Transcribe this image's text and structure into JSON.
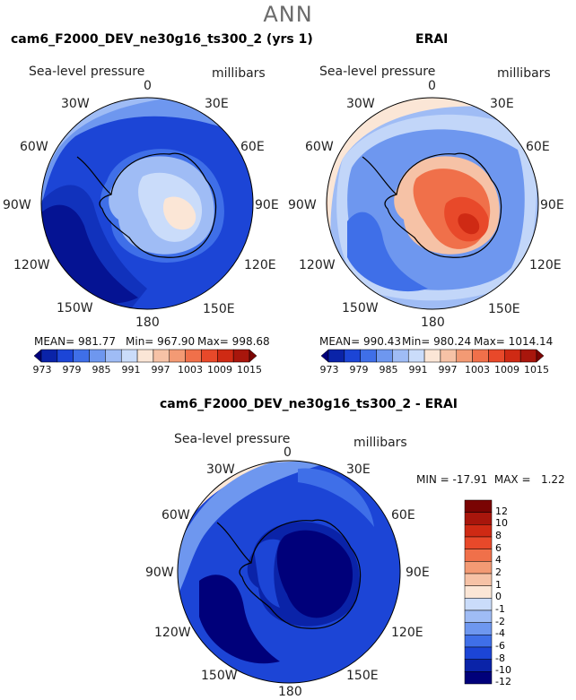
{
  "page": {
    "main_title": "ANN"
  },
  "chart_data": [
    {
      "type": "heatmap",
      "title": "cam6_F2000_DEV_ne30g16_ts300_2 (yrs 1)",
      "variable": "Sea-level pressure",
      "units": "millibars",
      "longitude_labels": [
        "0",
        "30E",
        "60E",
        "90E",
        "120E",
        "150E",
        "180",
        "150W",
        "120W",
        "90W",
        "60W",
        "30W"
      ],
      "stats": {
        "mean": "MEAN= 981.77",
        "min": "Min= 967.90",
        "max": "Max= 998.68"
      },
      "colorbar": {
        "orientation": "horizontal",
        "tick_labels": [
          "973",
          "979",
          "985",
          "991",
          "997",
          "1003",
          "1009",
          "1015"
        ],
        "colors": [
          "#00007a",
          "#0a23a8",
          "#1c45d6",
          "#3f6fe8",
          "#6e97ef",
          "#9fbcf5",
          "#cadcfa",
          "#fbe6d6",
          "#f6c2a6",
          "#f39a74",
          "#f0704a",
          "#e8492a",
          "#cf2a14",
          "#a8160c",
          "#7a0403"
        ]
      },
      "levels": {
        "open_ocean": 979,
        "south_pacific_low": 971,
        "coastal_trough": 987,
        "interior_plateau": 998
      }
    },
    {
      "type": "heatmap",
      "title": "ERAI",
      "variable": "Sea-level pressure",
      "units": "millibars",
      "longitude_labels": [
        "0",
        "30E",
        "60E",
        "90E",
        "120E",
        "150E",
        "180",
        "150W",
        "120W",
        "90W",
        "60W",
        "30W"
      ],
      "stats": {
        "mean": "MEAN= 990.43",
        "min": "Min= 980.24",
        "max": "Max= 1014.14"
      },
      "colorbar": {
        "orientation": "horizontal",
        "tick_labels": [
          "973",
          "979",
          "985",
          "991",
          "997",
          "1003",
          "1009",
          "1015"
        ],
        "colors": [
          "#00007a",
          "#0a23a8",
          "#1c45d6",
          "#3f6fe8",
          "#6e97ef",
          "#9fbcf5",
          "#cadcfa",
          "#fbe6d6",
          "#f6c2a6",
          "#f39a74",
          "#f0704a",
          "#e8492a",
          "#cf2a14",
          "#a8160c",
          "#7a0403"
        ]
      },
      "levels": {
        "open_ocean": 988,
        "coastal_trough": 991,
        "interior_plateau": 1008,
        "east_antarctic_high": 1013
      }
    },
    {
      "type": "heatmap",
      "title": "cam6_F2000_DEV_ne30g16_ts300_2 - ERAI",
      "variable": "Sea-level pressure",
      "units": "millibars",
      "longitude_labels": [
        "0",
        "30E",
        "60E",
        "90E",
        "120E",
        "150E",
        "180",
        "150W",
        "120W",
        "90W",
        "60W",
        "30W"
      ],
      "stats": {
        "minmax": "MIN = -17.91  MAX =   1.22"
      },
      "colorbar": {
        "orientation": "vertical",
        "tick_labels": [
          "12",
          "10",
          "8",
          "6",
          "4",
          "2",
          "1",
          "0",
          "-1",
          "-2",
          "-4",
          "-6",
          "-8",
          "-10",
          "-12"
        ],
        "colors": [
          "#7a0403",
          "#a8160c",
          "#cf2a14",
          "#e8492a",
          "#f0704a",
          "#f39a74",
          "#f6c2a6",
          "#fbe6d6",
          "#cadcfa",
          "#9fbcf5",
          "#6e97ef",
          "#3f6fe8",
          "#1c45d6",
          "#0a23a8",
          "#00007a"
        ]
      },
      "levels": {
        "open_ocean": -6,
        "south_pacific": -12,
        "east_antarctic": -14
      }
    }
  ]
}
